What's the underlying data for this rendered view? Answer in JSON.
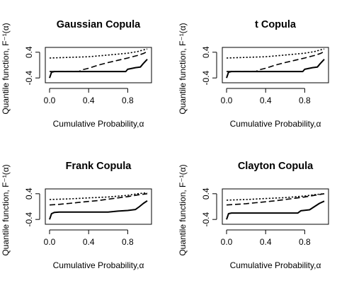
{
  "chart_data": [
    {
      "type": "line",
      "title": "Gaussian Copula",
      "xlabel": "Cumulative Probability,α",
      "ylabel": "Quantile function, F⁻¹(α)",
      "xlim": [
        0,
        1
      ],
      "ylim": [
        -0.55,
        0.55
      ],
      "xticks": [
        {
          "v": 0,
          "label": "0.0"
        },
        {
          "v": 0.4,
          "label": "0.4"
        },
        {
          "v": 0.8,
          "label": "0.8"
        }
      ],
      "yticks": [
        {
          "v": -0.4,
          "label": "-0.4"
        },
        {
          "v": 0.4,
          "label": "0.4"
        }
      ],
      "grid": false,
      "series": [
        {
          "style": "solid",
          "x": [
            0,
            0.02,
            0.05,
            0.1,
            0.3,
            0.5,
            0.78,
            0.8,
            0.88,
            0.93,
            0.96,
            1.0
          ],
          "y": [
            -0.4,
            -0.22,
            -0.2,
            -0.2,
            -0.2,
            -0.2,
            -0.2,
            -0.13,
            -0.08,
            -0.06,
            0.05,
            0.18
          ]
        },
        {
          "style": "dashed",
          "x": [
            0,
            0.02,
            0.3,
            0.33,
            0.4,
            0.5,
            0.6,
            0.7,
            0.8,
            0.9,
            0.96,
            1.0
          ],
          "y": [
            -0.2,
            -0.2,
            -0.2,
            -0.15,
            -0.1,
            0.0,
            0.08,
            0.15,
            0.22,
            0.3,
            0.36,
            0.42
          ]
        },
        {
          "style": "dotted",
          "x": [
            0,
            0.2,
            0.4,
            0.55,
            0.7,
            0.8,
            0.9,
            0.97,
            1.0
          ],
          "y": [
            0.22,
            0.24,
            0.26,
            0.3,
            0.34,
            0.37,
            0.42,
            0.48,
            0.5
          ]
        }
      ]
    },
    {
      "type": "line",
      "title": "t Copula",
      "xlabel": "Cumulative Probability,α",
      "ylabel": "Quantile function, F⁻¹(α)",
      "xlim": [
        0,
        1
      ],
      "ylim": [
        -0.55,
        0.55
      ],
      "xticks": [
        {
          "v": 0,
          "label": "0.0"
        },
        {
          "v": 0.4,
          "label": "0.4"
        },
        {
          "v": 0.8,
          "label": "0.8"
        }
      ],
      "yticks": [
        {
          "v": -0.4,
          "label": "-0.4"
        },
        {
          "v": 0.4,
          "label": "0.4"
        }
      ],
      "grid": false,
      "series": [
        {
          "style": "solid",
          "x": [
            0,
            0.02,
            0.05,
            0.1,
            0.3,
            0.5,
            0.78,
            0.8,
            0.88,
            0.93,
            0.96,
            1.0
          ],
          "y": [
            -0.4,
            -0.22,
            -0.2,
            -0.2,
            -0.2,
            -0.2,
            -0.2,
            -0.13,
            -0.08,
            -0.06,
            0.05,
            0.18
          ]
        },
        {
          "style": "dashed",
          "x": [
            0,
            0.02,
            0.3,
            0.33,
            0.4,
            0.5,
            0.6,
            0.7,
            0.8,
            0.9,
            0.96,
            1.0
          ],
          "y": [
            -0.2,
            -0.2,
            -0.2,
            -0.15,
            -0.1,
            0.0,
            0.08,
            0.15,
            0.22,
            0.3,
            0.36,
            0.42
          ]
        },
        {
          "style": "dotted",
          "x": [
            0,
            0.2,
            0.4,
            0.55,
            0.7,
            0.8,
            0.9,
            0.97,
            1.0
          ],
          "y": [
            0.22,
            0.24,
            0.26,
            0.3,
            0.34,
            0.37,
            0.42,
            0.48,
            0.5
          ]
        }
      ]
    },
    {
      "type": "line",
      "title": "Frank Copula",
      "xlabel": "Cumulative Probability,α",
      "ylabel": "Quantile function, F⁻¹(α)",
      "xlim": [
        0,
        1
      ],
      "ylim": [
        -0.55,
        0.55
      ],
      "xticks": [
        {
          "v": 0,
          "label": "0.0"
        },
        {
          "v": 0.4,
          "label": "0.4"
        },
        {
          "v": 0.8,
          "label": "0.8"
        }
      ],
      "yticks": [
        {
          "v": -0.4,
          "label": "-0.4"
        },
        {
          "v": 0.4,
          "label": "0.4"
        }
      ],
      "grid": false,
      "series": [
        {
          "style": "solid",
          "x": [
            0,
            0.02,
            0.05,
            0.1,
            0.3,
            0.6,
            0.7,
            0.8,
            0.88,
            0.92,
            0.96,
            1.0
          ],
          "y": [
            -0.4,
            -0.22,
            -0.18,
            -0.17,
            -0.17,
            -0.17,
            -0.14,
            -0.12,
            -0.09,
            0.0,
            0.1,
            0.18
          ]
        },
        {
          "style": "dashed",
          "x": [
            0,
            0.1,
            0.2,
            0.3,
            0.4,
            0.5,
            0.6,
            0.7,
            0.8,
            0.9,
            1.0
          ],
          "y": [
            0.05,
            0.07,
            0.1,
            0.13,
            0.16,
            0.19,
            0.23,
            0.27,
            0.31,
            0.36,
            0.4
          ]
        },
        {
          "style": "dotted",
          "x": [
            0,
            0.2,
            0.4,
            0.6,
            0.8,
            0.9,
            1.0
          ],
          "y": [
            0.22,
            0.24,
            0.27,
            0.3,
            0.35,
            0.4,
            0.43
          ]
        }
      ]
    },
    {
      "type": "line",
      "title": "Clayton Copula",
      "xlabel": "Cumulative Probability,α",
      "ylabel": "Quantile function, F⁻¹(α)",
      "xlim": [
        0,
        1
      ],
      "ylim": [
        -0.55,
        0.55
      ],
      "xticks": [
        {
          "v": 0,
          "label": "0.0"
        },
        {
          "v": 0.4,
          "label": "0.4"
        },
        {
          "v": 0.8,
          "label": "0.8"
        }
      ],
      "yticks": [
        {
          "v": -0.4,
          "label": "-0.4"
        },
        {
          "v": 0.4,
          "label": "0.4"
        }
      ],
      "grid": false,
      "series": [
        {
          "style": "solid",
          "x": [
            0,
            0.02,
            0.05,
            0.1,
            0.3,
            0.5,
            0.73,
            0.76,
            0.85,
            0.9,
            0.95,
            1.0
          ],
          "y": [
            -0.4,
            -0.22,
            -0.2,
            -0.2,
            -0.2,
            -0.2,
            -0.2,
            -0.13,
            -0.1,
            0.0,
            0.1,
            0.17
          ]
        },
        {
          "style": "dashed",
          "x": [
            0,
            0.1,
            0.2,
            0.3,
            0.4,
            0.5,
            0.6,
            0.7,
            0.8,
            0.9,
            1.0
          ],
          "y": [
            0.05,
            0.07,
            0.09,
            0.12,
            0.15,
            0.18,
            0.22,
            0.26,
            0.3,
            0.35,
            0.4
          ]
        },
        {
          "style": "dotted",
          "x": [
            0,
            0.2,
            0.4,
            0.6,
            0.8,
            0.9,
            1.0
          ],
          "y": [
            0.2,
            0.22,
            0.25,
            0.28,
            0.33,
            0.37,
            0.4
          ]
        }
      ]
    }
  ]
}
